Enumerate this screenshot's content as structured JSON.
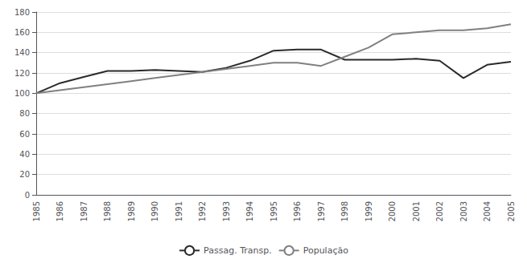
{
  "chart_data": {
    "type": "line",
    "x": [
      1985,
      1986,
      1987,
      1988,
      1989,
      1990,
      1991,
      1992,
      1993,
      1994,
      1995,
      1996,
      1997,
      1998,
      1999,
      2000,
      2001,
      2002,
      2003,
      2004,
      2005
    ],
    "series": [
      {
        "name": "Passag. Transp.",
        "color": "#2a2a2a",
        "values": [
          100,
          110,
          116,
          122,
          122,
          123,
          122,
          121,
          125,
          132,
          142,
          143,
          143,
          133,
          133,
          133,
          134,
          132,
          115,
          128,
          131
        ]
      },
      {
        "name": "População",
        "color": "#808080",
        "values": [
          100,
          103,
          106,
          109,
          112,
          115,
          118,
          121,
          124,
          127,
          130,
          130,
          127,
          136,
          145,
          158,
          160,
          162,
          162,
          164,
          168
        ]
      }
    ],
    "xlim": [
      1985,
      2005
    ],
    "xticks": [
      1985,
      1986,
      1987,
      1988,
      1989,
      1990,
      1991,
      1992,
      1993,
      1994,
      1995,
      1996,
      1997,
      1998,
      1999,
      2000,
      2001,
      2002,
      2003,
      2004,
      2005
    ],
    "ylim": [
      0,
      180
    ],
    "yticks": [
      0,
      20,
      40,
      60,
      80,
      100,
      120,
      140,
      160,
      180
    ],
    "grid": true,
    "legend": "bottom"
  }
}
